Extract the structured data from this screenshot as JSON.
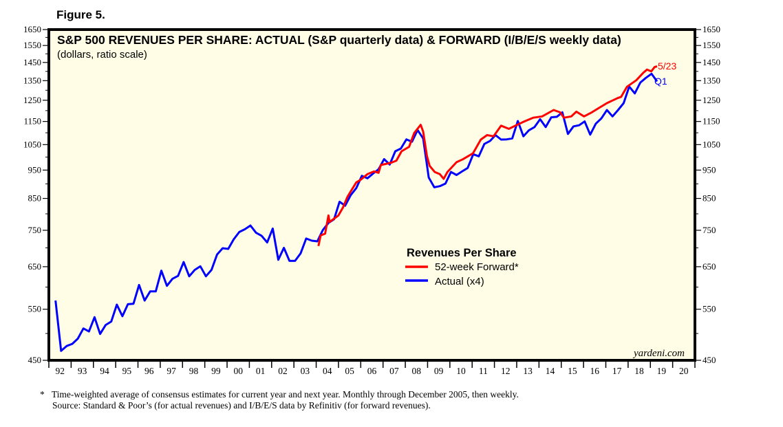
{
  "figure_label": "Figure 5.",
  "footnotes": {
    "star": "*",
    "line1": "Time-weighted average of consensus estimates for current year and next year. Monthly through December 2005, then weekly.",
    "line2": "Source: Standard & Poor’s (for actual revenues) and I/B/E/S data by Refinitiv (for forward revenues)."
  },
  "chart_data": {
    "type": "line",
    "title": "S&P 500 REVENUES PER SHARE: ACTUAL (S&P quarterly data) & FORWARD (I/B/E/S weekly data)",
    "subtitle": "(dollars, ratio scale)",
    "y_scale": "log",
    "ylim": [
      450,
      1650
    ],
    "y_ticks": [
      "1650",
      "1550",
      "1450",
      "1350",
      "1250",
      "1150",
      "1050",
      "950",
      "850",
      "750",
      "650",
      "550",
      "450"
    ],
    "y_tick_values": [
      1650,
      1550,
      1450,
      1350,
      1250,
      1150,
      1050,
      950,
      850,
      750,
      650,
      550,
      450
    ],
    "y_minor_ticks": [
      1600,
      1500,
      1400,
      1300,
      1200,
      1100,
      1000,
      900,
      800,
      700,
      600,
      500
    ],
    "xlim": [
      1992,
      2021
    ],
    "x_ticks": [
      "92",
      "93",
      "94",
      "95",
      "96",
      "97",
      "98",
      "99",
      "00",
      "01",
      "02",
      "03",
      "04",
      "05",
      "06",
      "07",
      "08",
      "09",
      "10",
      "11",
      "12",
      "13",
      "14",
      "15",
      "16",
      "17",
      "18",
      "19",
      "20"
    ],
    "grid": false,
    "background": "#fffde6",
    "watermark": "yardeni.com",
    "legend": {
      "title": "Revenues Per Share",
      "placement": "center",
      "items": [
        {
          "label": "52-week Forward*",
          "color": "#ff0000"
        },
        {
          "label": "Actual (x4)",
          "color": "#0000ff"
        }
      ]
    },
    "series": [
      {
        "name": "52-week Forward*",
        "color": "#ff0000",
        "end_label": "5/23",
        "points": [
          [
            2004.1,
            705
          ],
          [
            2004.2,
            735
          ],
          [
            2004.4,
            740
          ],
          [
            2004.55,
            795
          ],
          [
            2004.6,
            775
          ],
          [
            2004.8,
            785
          ],
          [
            2005.0,
            795
          ],
          [
            2005.2,
            820
          ],
          [
            2005.4,
            855
          ],
          [
            2005.6,
            880
          ],
          [
            2005.8,
            905
          ],
          [
            2006.0,
            915
          ],
          [
            2006.3,
            935
          ],
          [
            2006.6,
            945
          ],
          [
            2006.8,
            940
          ],
          [
            2006.9,
            969
          ],
          [
            2007.37,
            978
          ],
          [
            2007.6,
            986
          ],
          [
            2007.83,
            1023
          ],
          [
            2008.17,
            1041
          ],
          [
            2008.4,
            1099
          ],
          [
            2008.69,
            1135
          ],
          [
            2008.8,
            1105
          ],
          [
            2008.97,
            1004
          ],
          [
            2009.09,
            966
          ],
          [
            2009.32,
            943
          ],
          [
            2009.55,
            935
          ],
          [
            2009.72,
            918
          ],
          [
            2009.89,
            943
          ],
          [
            2010.3,
            980
          ],
          [
            2010.58,
            991
          ],
          [
            2011.04,
            1015
          ],
          [
            2011.39,
            1071
          ],
          [
            2011.67,
            1090
          ],
          [
            2011.96,
            1085
          ],
          [
            2012.3,
            1131
          ],
          [
            2012.65,
            1117
          ],
          [
            2013.0,
            1134
          ],
          [
            2013.34,
            1150
          ],
          [
            2013.74,
            1167
          ],
          [
            2014.14,
            1173
          ],
          [
            2014.66,
            1203
          ],
          [
            2014.95,
            1192
          ],
          [
            2015.12,
            1167
          ],
          [
            2015.45,
            1173
          ],
          [
            2015.68,
            1195
          ],
          [
            2016.02,
            1173
          ],
          [
            2016.37,
            1192
          ],
          [
            2016.71,
            1214
          ],
          [
            2017.05,
            1236
          ],
          [
            2017.52,
            1260
          ],
          [
            2017.69,
            1267
          ],
          [
            2017.95,
            1318
          ],
          [
            2018.37,
            1352
          ],
          [
            2018.68,
            1392
          ],
          [
            2018.85,
            1410
          ],
          [
            2019.04,
            1400
          ],
          [
            2019.19,
            1424
          ],
          [
            2019.3,
            1428
          ]
        ]
      },
      {
        "name": "Actual (x4)",
        "color": "#0000ff",
        "end_label": "Q1",
        "first_quarter": "1992Q1",
        "frequency": "quarterly",
        "values": [
          569,
          467,
          476,
          480,
          490,
          510,
          504,
          533,
          499,
          517,
          524,
          560,
          535,
          561,
          562,
          605,
          569,
          590,
          590,
          640,
          603,
          620,
          627,
          662,
          626,
          642,
          651,
          626,
          642,
          682,
          699,
          697,
          724,
          745,
          753,
          764,
          743,
          734,
          715,
          755,
          668,
          700,
          665,
          665,
          685,
          726,
          720,
          718,
          751,
          772,
          783,
          839,
          826,
          861,
          885,
          929,
          920,
          937,
          953,
          992,
          971,
          1023,
          1034,
          1072,
          1062,
          1112,
          1076,
          923,
          888,
          892,
          901,
          943,
          932,
          945,
          958,
          1011,
          1003,
          1053,
          1065,
          1090,
          1071,
          1072,
          1076,
          1152,
          1085,
          1111,
          1125,
          1160,
          1125,
          1169,
          1171,
          1192,
          1095,
          1128,
          1133,
          1150,
          1092,
          1140,
          1164,
          1203,
          1173,
          1203,
          1236,
          1319,
          1284,
          1340,
          1365,
          1387,
          1346
        ]
      }
    ]
  }
}
